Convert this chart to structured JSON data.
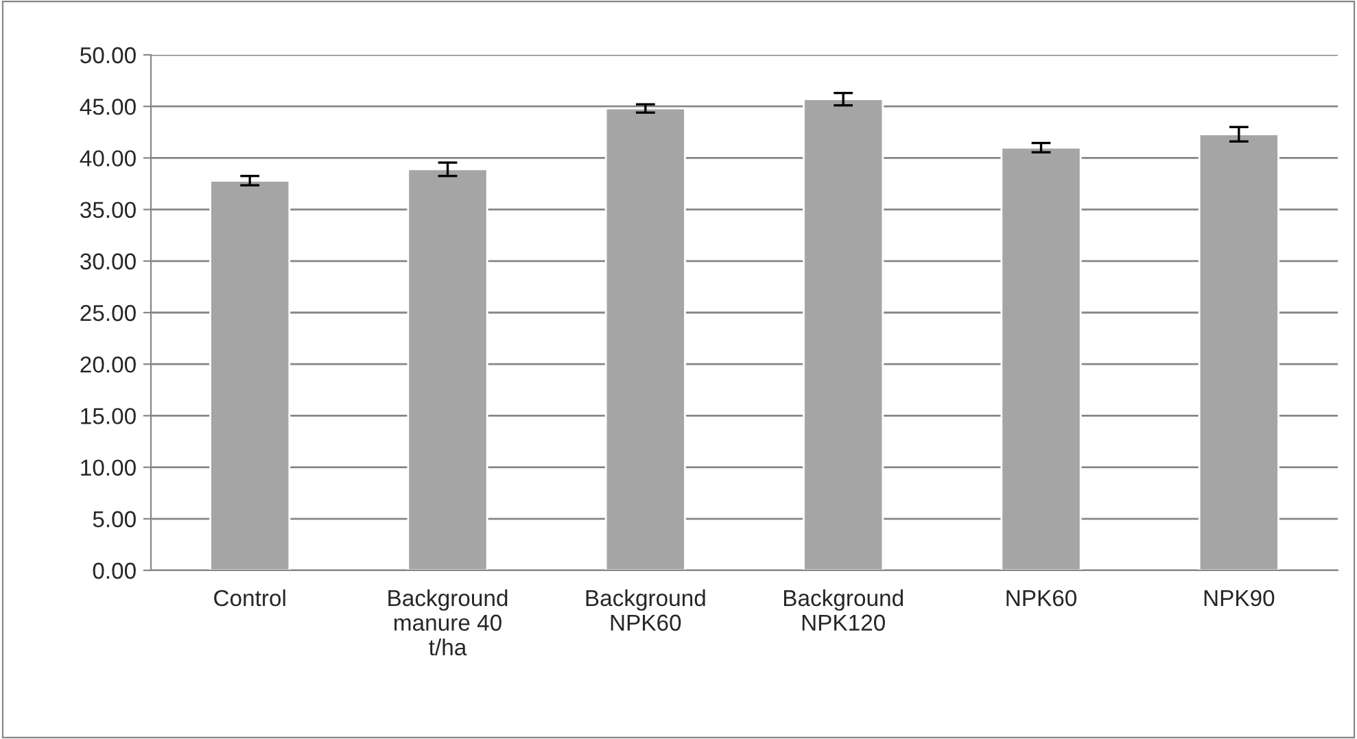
{
  "chart_data": {
    "type": "bar",
    "categories": [
      "Control",
      "Background\nmanure 40\nt/ha",
      "Background\nNPK60",
      "Background\nNPK120",
      "NPK60",
      "NPK90"
    ],
    "values": [
      37.8,
      38.9,
      44.8,
      45.7,
      41.0,
      42.3
    ],
    "errors": [
      0.45,
      0.65,
      0.4,
      0.6,
      0.45,
      0.7
    ],
    "color": "#a5a5a5",
    "ylim": [
      0,
      50
    ],
    "yticks": [
      {
        "value": 0,
        "label": "0.00"
      },
      {
        "value": 5,
        "label": "5.00"
      },
      {
        "value": 10,
        "label": "10.00"
      },
      {
        "value": 15,
        "label": "15.00"
      },
      {
        "value": 20,
        "label": "20.00"
      },
      {
        "value": 25,
        "label": "25.00"
      },
      {
        "value": 30,
        "label": "30.00"
      },
      {
        "value": 35,
        "label": "35.00"
      },
      {
        "value": 40,
        "label": "40.00"
      },
      {
        "value": 45,
        "label": "45.00"
      },
      {
        "value": 50,
        "label": "50.00"
      }
    ],
    "grid": "y",
    "legend": false
  }
}
